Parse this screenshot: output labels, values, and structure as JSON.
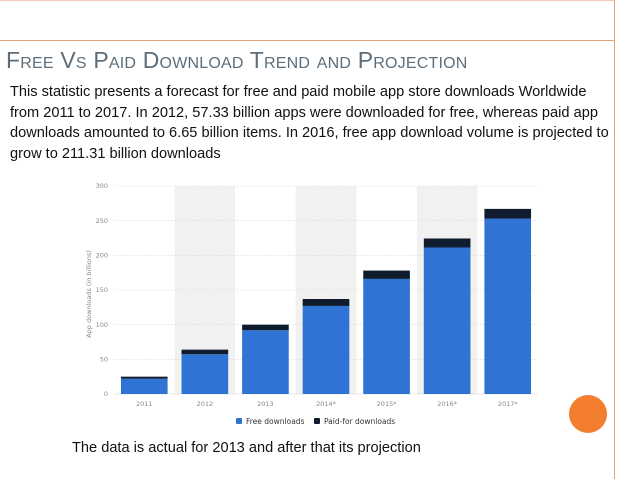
{
  "slide": {
    "title": "Free Vs Paid Download Trend and Projection",
    "description": "This statistic presents a forecast for free and paid mobile app store downloads Worldwide from 2011 to 2017. In 2012, 57.33 billion apps were downloaded for free, whereas paid app downloads amounted to 6.65 billion items. In 2016, free app download volume is projected to grow to 211.31 billion downloads",
    "footnote": "The data is actual for 2013 and after that its projection"
  },
  "colors": {
    "free": "#2f73d5",
    "paid": "#0f1c2e",
    "shade": "#f1f1f1",
    "grid": "#d6d6d6"
  },
  "chart_data": {
    "type": "bar",
    "stacked": true,
    "categories": [
      "2011",
      "2012",
      "2013",
      "2014*",
      "2015*",
      "2016*",
      "2017*"
    ],
    "series": [
      {
        "name": "Free downloads",
        "values": [
          22,
          57.33,
          92,
          127,
          166,
          211.31,
          253
        ]
      },
      {
        "name": "Paid-for downloads",
        "values": [
          3,
          6.65,
          8,
          10,
          12,
          13,
          14
        ]
      }
    ],
    "ylabel": "App downloads (in billions)",
    "xlabel": "",
    "ylim": [
      0,
      300
    ],
    "yticks": [
      0,
      50,
      100,
      150,
      200,
      250,
      300
    ],
    "grid": true,
    "legend": "bottom-center"
  }
}
